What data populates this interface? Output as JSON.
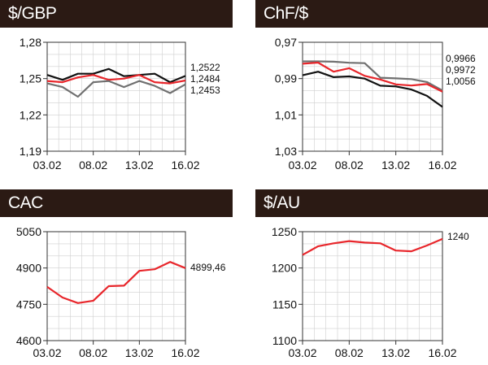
{
  "chart_data": [
    {
      "id": "gbp",
      "type": "line",
      "title": "$/GBP",
      "x_ticks": [
        "03.02",
        "08.02",
        "13.02",
        "16.02"
      ],
      "x": [
        0,
        1,
        2,
        3,
        4,
        5,
        6,
        7,
        8,
        9
      ],
      "y_ticks": [
        "1,28",
        "1,25",
        "1,22",
        "1,19"
      ],
      "ylim": [
        1.19,
        1.28
      ],
      "inverted": false,
      "series": [
        {
          "color": "#111111",
          "values": [
            1.253,
            1.249,
            1.254,
            1.254,
            1.258,
            1.252,
            1.253,
            1.254,
            1.247,
            1.2522
          ]
        },
        {
          "color": "#e8262b",
          "values": [
            1.248,
            1.247,
            1.251,
            1.253,
            1.249,
            1.25,
            1.253,
            1.247,
            1.246,
            1.2484
          ]
        },
        {
          "color": "#707070",
          "values": [
            1.246,
            1.243,
            1.235,
            1.247,
            1.248,
            1.243,
            1.248,
            1.244,
            1.238,
            1.2453
          ]
        }
      ],
      "end_labels": [
        "1,2522",
        "1,2484",
        "1,2453"
      ],
      "grid": true
    },
    {
      "id": "chf",
      "type": "line",
      "title": "ChF/$",
      "x_ticks": [
        "03.02",
        "08.02",
        "13.02",
        "16.02"
      ],
      "x": [
        0,
        1,
        2,
        3,
        4,
        5,
        6,
        7,
        8,
        9
      ],
      "y_ticks": [
        "0,97",
        "0,99",
        "1,01",
        "1,03"
      ],
      "ylim": [
        0.97,
        1.03
      ],
      "inverted": true,
      "series": [
        {
          "color": "#707070",
          "values": [
            0.9805,
            0.9805,
            0.9807,
            0.9813,
            0.9815,
            0.9895,
            0.9899,
            0.9903,
            0.9919,
            0.9966
          ]
        },
        {
          "color": "#e8262b",
          "values": [
            0.9818,
            0.9812,
            0.9862,
            0.9843,
            0.9885,
            0.9905,
            0.9932,
            0.9938,
            0.993,
            0.9972
          ]
        },
        {
          "color": "#111111",
          "values": [
            0.9882,
            0.9862,
            0.9892,
            0.9888,
            0.99,
            0.9939,
            0.9943,
            0.996,
            0.9995,
            1.0056
          ]
        }
      ],
      "end_labels": [
        "0,9966",
        "0,9972",
        "1,0056"
      ],
      "grid": true
    },
    {
      "id": "cac",
      "type": "line",
      "title": "CAC",
      "x_ticks": [
        "03.02",
        "08.02",
        "13.02",
        "16.02"
      ],
      "x": [
        0,
        1,
        2,
        3,
        4,
        5,
        6,
        7,
        8,
        9
      ],
      "y_ticks": [
        "5050",
        "4900",
        "4750",
        "4600"
      ],
      "ylim": [
        4600,
        5050
      ],
      "inverted": false,
      "series": [
        {
          "color": "#e8262b",
          "values": [
            4822,
            4778,
            4755,
            4765,
            4825,
            4827,
            4888,
            4895,
            4925,
            4899.46
          ]
        }
      ],
      "end_labels": [
        "4899,46"
      ],
      "grid": true
    },
    {
      "id": "au",
      "type": "line",
      "title": "$/AU",
      "x_ticks": [
        "03.02",
        "08.02",
        "13.02",
        "16.02"
      ],
      "x": [
        0,
        1,
        2,
        3,
        4,
        5,
        6,
        7,
        8,
        9
      ],
      "y_ticks": [
        "1250",
        "1200",
        "1150",
        "1100"
      ],
      "ylim": [
        1100,
        1250
      ],
      "inverted": false,
      "series": [
        {
          "color": "#e8262b",
          "values": [
            1218,
            1230,
            1234,
            1237,
            1235,
            1234,
            1224,
            1223,
            1231,
            1240
          ]
        }
      ],
      "end_labels": [
        "1240"
      ],
      "grid": true
    }
  ]
}
